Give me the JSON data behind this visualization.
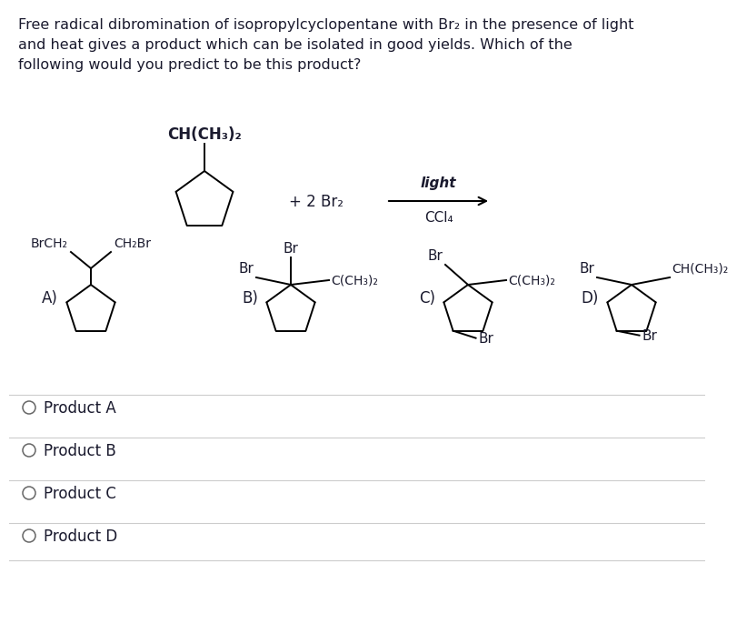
{
  "background_color": "#ffffff",
  "text_color": "#1a1a2e",
  "title_text": "Free radical dibromination of isopropylcyclopentane with Br₂ in the presence of light\nand heat gives a product which can be isolated in good yields. Which of the\nfollowing would you predict to be this product?",
  "title_fontsize": 11.5,
  "radio_options": [
    "Product A",
    "Product B",
    "Product C",
    "Product D"
  ],
  "reaction_arrow_label_top": "light",
  "reaction_arrow_label_bottom": "CCl₄",
  "reagent_text": "+ 2 Br₂",
  "product_labels": [
    "A)",
    "B)",
    "C)",
    "D)"
  ],
  "label_A_left": "BrCH₂",
  "label_A_right": "CH₂Br",
  "label_B_top": "Br",
  "label_B_left": "Br",
  "label_B_right": "C(CH₃)₂",
  "label_C_top": "Br",
  "label_C_right_top": "C(CH₃)₂",
  "label_C_right_bot": "Br",
  "label_D_left": "Br",
  "label_D_right_top": "CH(CH₃)₂",
  "label_D_right_bot": "Br",
  "reactant_top_label": "CH(CH₃)₂"
}
